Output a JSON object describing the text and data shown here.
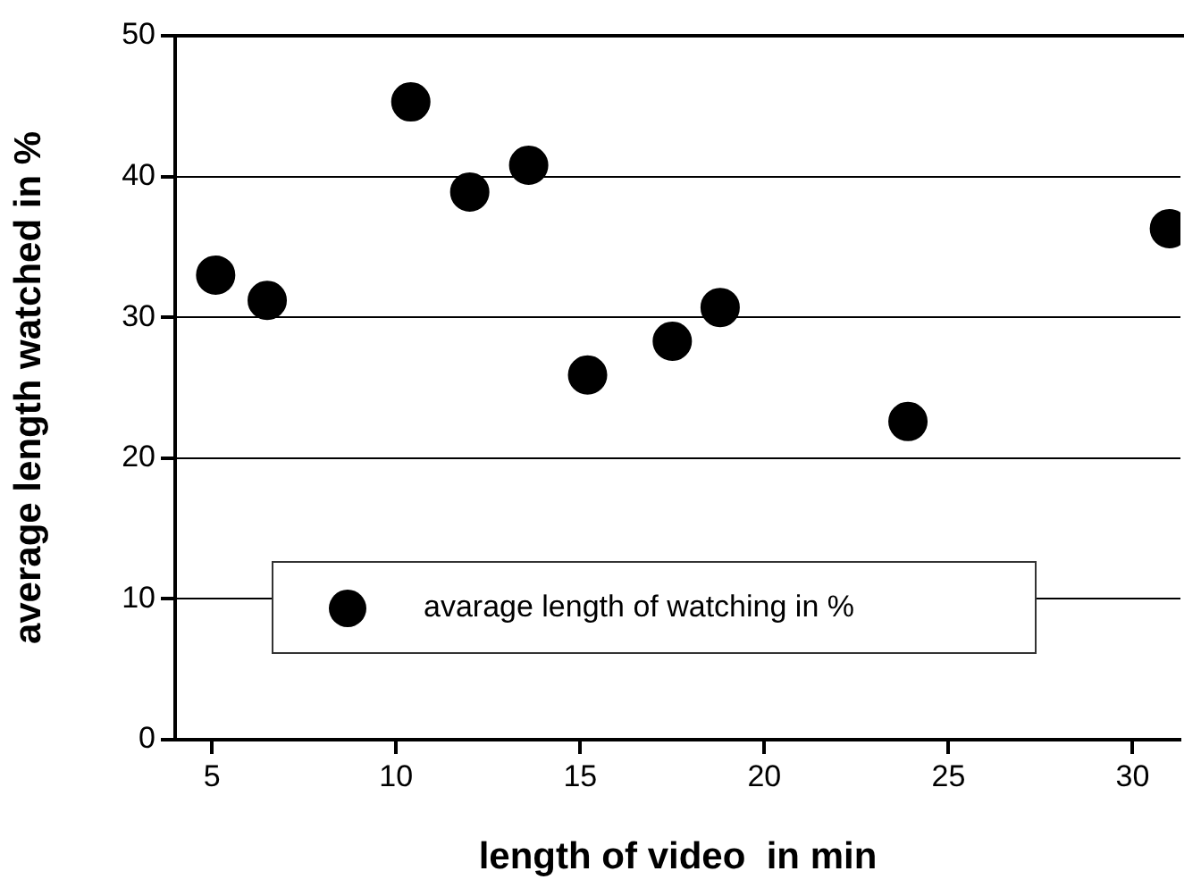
{
  "chart_data": {
    "type": "scatter",
    "xlabel": "length of video  in min",
    "ylabel": "average length watched in %",
    "xlim": [
      4,
      31.3
    ],
    "xticks": [
      5,
      10,
      15,
      20,
      25,
      30
    ],
    "ylim": [
      0,
      50
    ],
    "yticks": [
      0,
      10,
      20,
      30,
      40,
      50
    ],
    "grid": "y",
    "legend": "bottom",
    "marker": "circle",
    "series": [
      {
        "name": "avarage length of watching  in %",
        "color": "#000000",
        "x": [
          5.1,
          6.5,
          10.4,
          12.0,
          13.6,
          15.2,
          17.5,
          18.8,
          23.9,
          31.0
        ],
        "values": [
          33.0,
          31.2,
          45.3,
          38.9,
          40.8,
          25.9,
          28.3,
          30.7,
          22.6,
          36.3
        ]
      }
    ]
  }
}
